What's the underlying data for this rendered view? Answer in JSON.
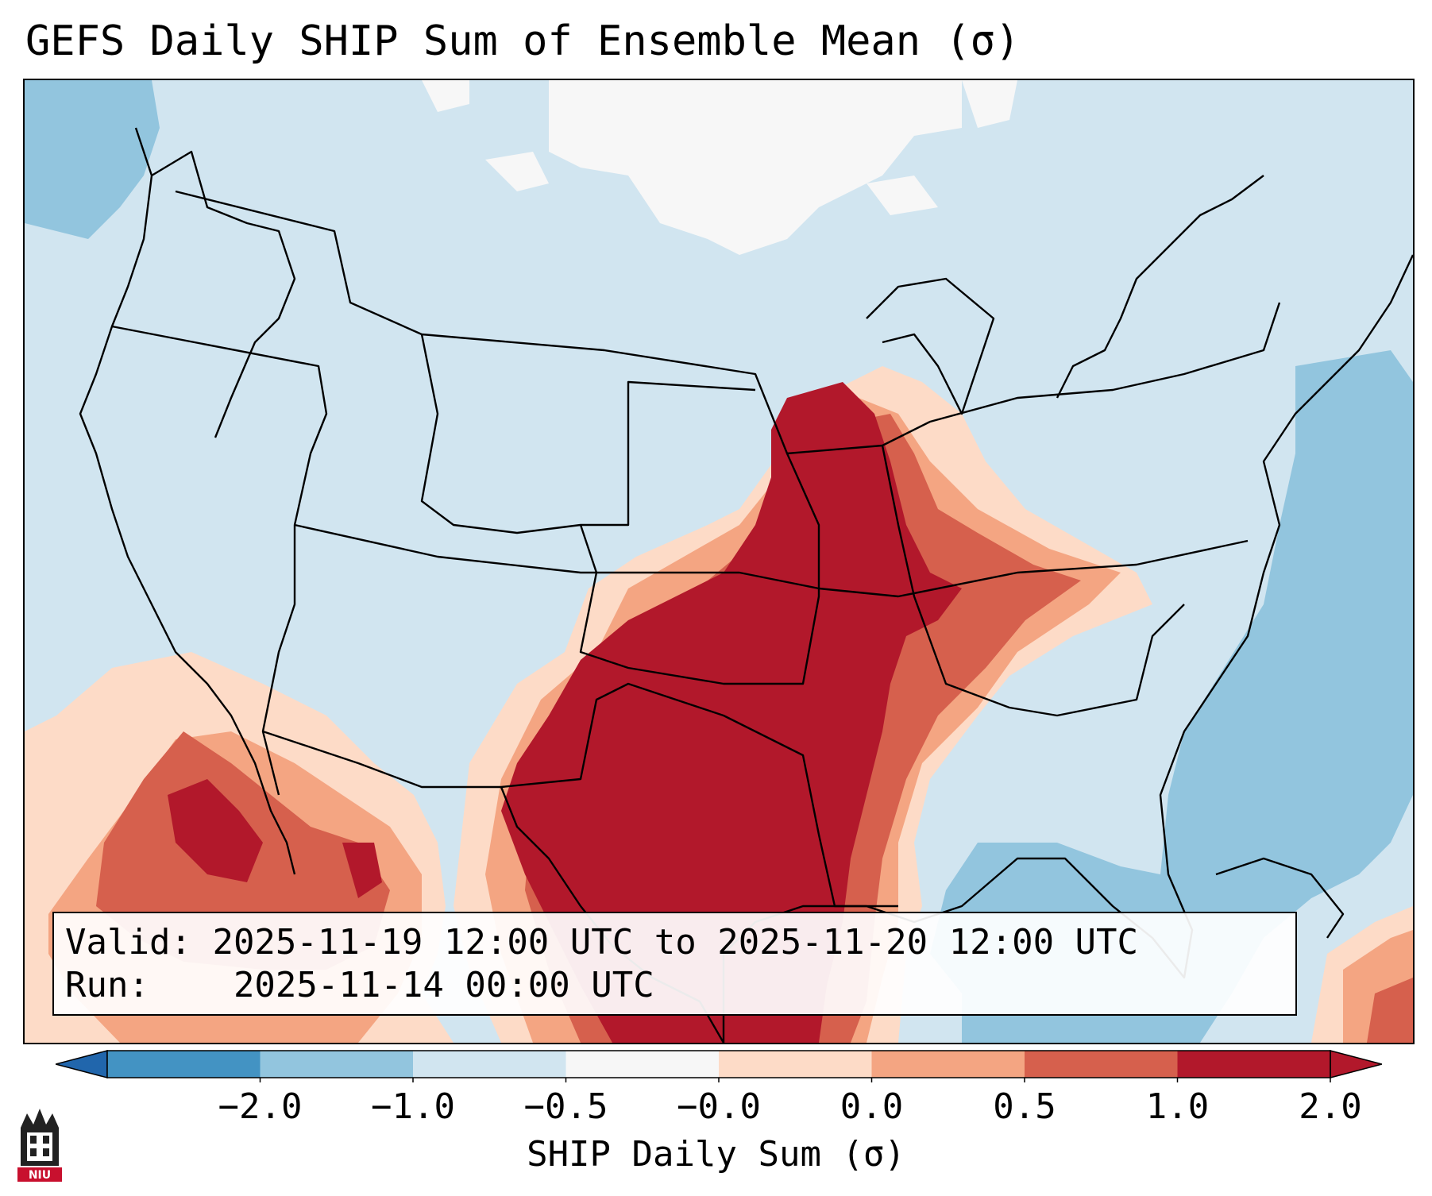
{
  "title": "GEFS Daily SHIP Sum of Ensemble Mean (σ)",
  "info": {
    "valid_label": "Valid:",
    "valid_value": "2025-11-19 12:00 UTC to 2025-11-20 12:00 UTC",
    "run_label": "Run:",
    "run_value": "2025-11-14 00:00 UTC"
  },
  "colorbar": {
    "label": "SHIP Daily Sum (σ)",
    "tick_labels": [
      "−2.0",
      "−1.0",
      "−0.5",
      "−0.0",
      "0.0",
      "0.5",
      "1.0",
      "2.0"
    ],
    "colors": [
      "#4393c3",
      "#92c5de",
      "#d1e5f0",
      "#f7f7f7",
      "#fddbc7",
      "#f4a582",
      "#d6604d",
      "#b2182b"
    ],
    "extend_low_color": "#2166ac",
    "extend_high_color": "#b2182b"
  },
  "logo": {
    "icon": "niu-logo-icon",
    "text": "NIU"
  }
}
